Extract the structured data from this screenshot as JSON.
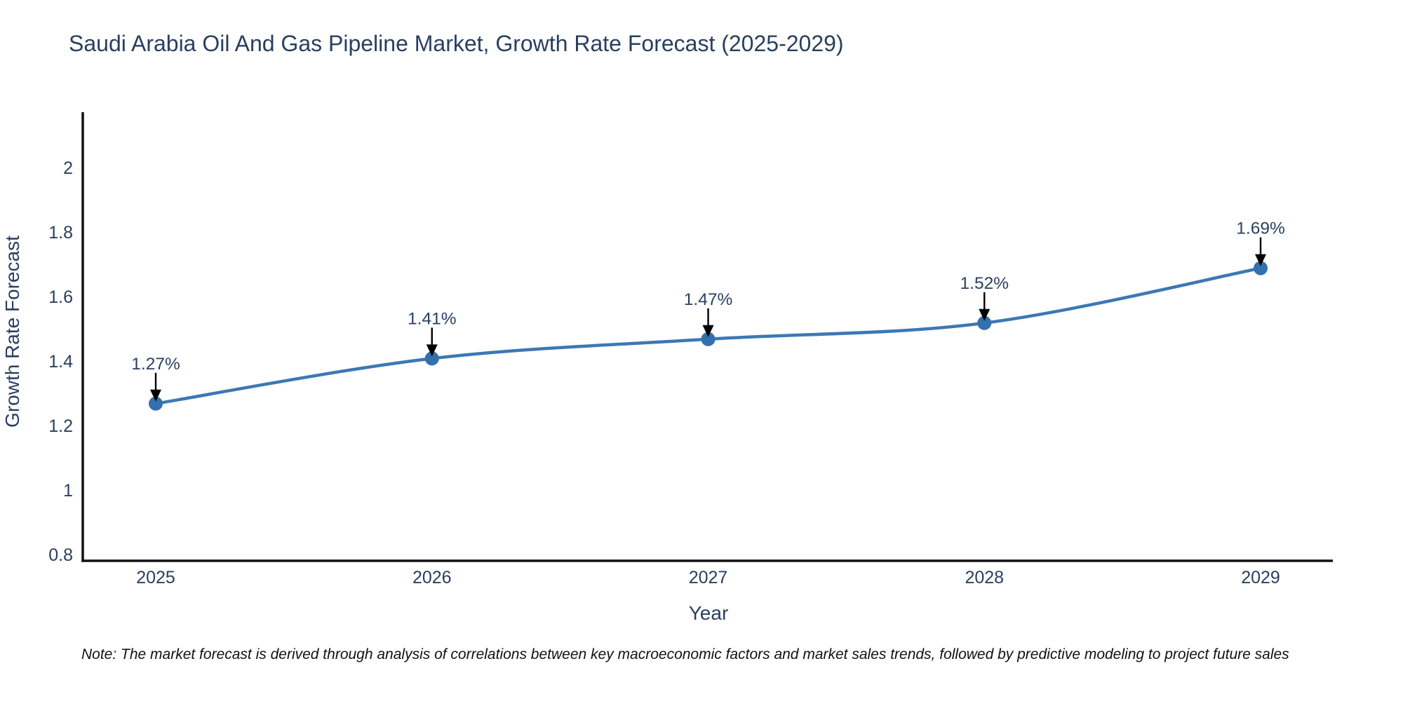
{
  "header": {
    "title": "Saudi Arabia Oil And Gas Pipeline Market, Growth Rate Forecast (2025-2029)"
  },
  "footnote": {
    "text": "Note: The market forecast is derived through analysis of correlations between key macroeconomic factors and market sales trends, followed by predictive modeling to project future sales"
  },
  "chart_data": {
    "type": "line",
    "title": "Saudi Arabia Oil And Gas Pipeline Market, Growth Rate Forecast (2025-2029)",
    "xlabel": "Year",
    "ylabel": "Growth Rate Forecast",
    "x": [
      2025,
      2026,
      2027,
      2028,
      2029
    ],
    "values": [
      1.27,
      1.41,
      1.47,
      1.52,
      1.69
    ],
    "point_labels": [
      "1.27%",
      "1.41%",
      "1.47%",
      "1.52%",
      "1.69%"
    ],
    "xtick_labels": [
      "2025",
      "2026",
      "2027",
      "2028",
      "2029"
    ],
    "yticks": [
      0.8,
      1.0,
      1.2,
      1.4,
      1.6,
      1.8,
      2.0
    ],
    "ytick_labels": [
      "0.8",
      "1",
      "1.2",
      "1.4",
      "1.6",
      "1.8",
      "2"
    ],
    "ylim": [
      0.78,
      2.17
    ],
    "grid": false,
    "legend": "none",
    "line_shape": "spline",
    "markers": true,
    "colors": {
      "line": "#3c78b4",
      "marker": "#3370ad",
      "annotation_text": "#2a3f5f",
      "annotation_arrow": "#000000",
      "axis_line": "#111111",
      "tick_text": "#2a3f5f",
      "title_text": "#2a3f5f",
      "background": "#ffffff"
    }
  }
}
